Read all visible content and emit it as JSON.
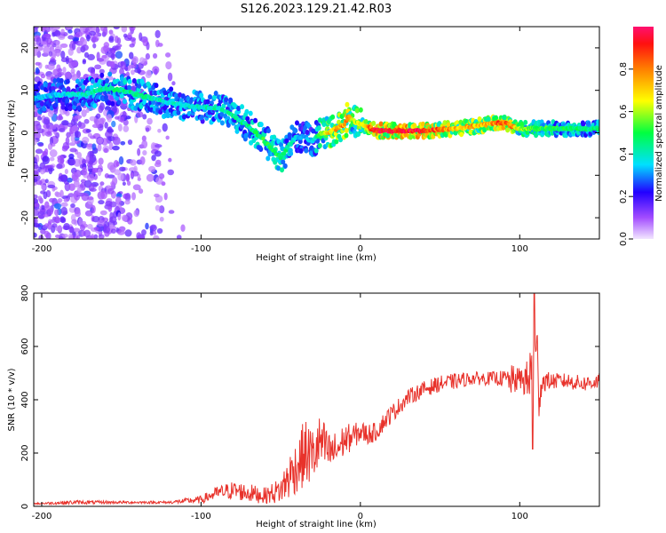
{
  "title": "S126.2023.129.21.42.R03",
  "colors": {
    "background": "#ffffff",
    "snr_line": "#e8322b",
    "ridge_core": "#e0302a",
    "scatter_faint": "#c9a8f0"
  },
  "chart_data": [
    {
      "type": "heatmap",
      "xlabel": "Height of straight line (km)",
      "ylabel": "Frequency (Hz)",
      "xlim": [
        -205,
        150
      ],
      "ylim": [
        -25,
        25
      ],
      "x_ticks": [
        -200,
        -100,
        0,
        100
      ],
      "y_ticks": [
        -20,
        -10,
        0,
        10,
        20
      ],
      "colorbar": {
        "label": "Normalized spectral amplitude",
        "range": [
          0,
          1
        ],
        "ticks": [
          0.0,
          0.2,
          0.4,
          0.6,
          0.8
        ],
        "tick_labels": [
          "0.0",
          "0.2",
          "0.4",
          "0.6",
          "0.8"
        ]
      },
      "ridge": {
        "x": [
          -205,
          -190,
          -175,
          -160,
          -150,
          -140,
          -120,
          -100,
          -90,
          -80,
          -70,
          -60,
          -55,
          -50,
          -45,
          -40,
          -35,
          -30,
          -25,
          -20,
          -15,
          -10,
          -7,
          -5,
          0,
          10,
          20,
          40,
          60,
          80,
          90,
          95,
          100,
          110,
          120,
          150
        ],
        "y": [
          8,
          9,
          9,
          10.5,
          10,
          9,
          7,
          6,
          6,
          4,
          1.5,
          -2,
          -4,
          -6,
          -3,
          -1,
          -1,
          -2,
          0,
          0,
          1,
          2,
          4,
          3,
          2,
          0.5,
          0.5,
          0.5,
          1,
          2,
          2.5,
          1.5,
          1,
          1,
          1,
          1
        ],
        "amplitude": [
          0.35,
          0.35,
          0.4,
          0.45,
          0.45,
          0.45,
          0.4,
          0.4,
          0.42,
          0.45,
          0.45,
          0.5,
          0.5,
          0.5,
          0.45,
          0.35,
          0.35,
          0.35,
          0.55,
          0.7,
          0.75,
          0.8,
          0.85,
          0.6,
          0.65,
          0.95,
          0.95,
          0.95,
          0.75,
          0.75,
          0.9,
          0.8,
          0.6,
          0.55,
          0.5,
          0.45
        ]
      },
      "scatter_region": {
        "x": [
          -205,
          -110
        ],
        "y": [
          -25,
          25
        ],
        "amplitude": [
          0.05,
          0.25
        ]
      }
    },
    {
      "type": "line",
      "xlabel": "Height of straight line (km)",
      "ylabel": "SNR (10 * v/v)",
      "xlim": [
        -205,
        150
      ],
      "ylim": [
        0,
        800
      ],
      "x_ticks": [
        -200,
        -100,
        0,
        100
      ],
      "y_ticks": [
        0,
        200,
        400,
        600,
        800
      ],
      "series": [
        {
          "x": [
            -205,
            -180,
            -150,
            -120,
            -100,
            -90,
            -80,
            -70,
            -60,
            -50,
            -45,
            -40,
            -35,
            -30,
            -25,
            -20,
            -15,
            -10,
            -5,
            0,
            5,
            10,
            15,
            20,
            30,
            40,
            50,
            60,
            70,
            80,
            90,
            95,
            100,
            105,
            108,
            110,
            112,
            115,
            120,
            130,
            140,
            150
          ],
          "y": [
            10,
            15,
            15,
            15,
            25,
            50,
            60,
            50,
            40,
            60,
            110,
            150,
            200,
            190,
            240,
            200,
            210,
            250,
            260,
            280,
            270,
            280,
            320,
            350,
            410,
            440,
            460,
            470,
            480,
            480,
            480,
            470,
            480,
            470,
            480,
            560,
            450,
            470,
            470,
            470,
            460,
            470
          ],
          "amp": [
            3,
            8,
            5,
            5,
            15,
            25,
            35,
            35,
            30,
            50,
            90,
            100,
            130,
            110,
            110,
            80,
            70,
            60,
            50,
            40,
            40,
            35,
            35,
            35,
            30,
            30,
            30,
            30,
            25,
            25,
            30,
            60,
            40,
            80,
            250,
            260,
            130,
            40,
            30,
            30,
            30,
            30
          ]
        }
      ]
    }
  ]
}
